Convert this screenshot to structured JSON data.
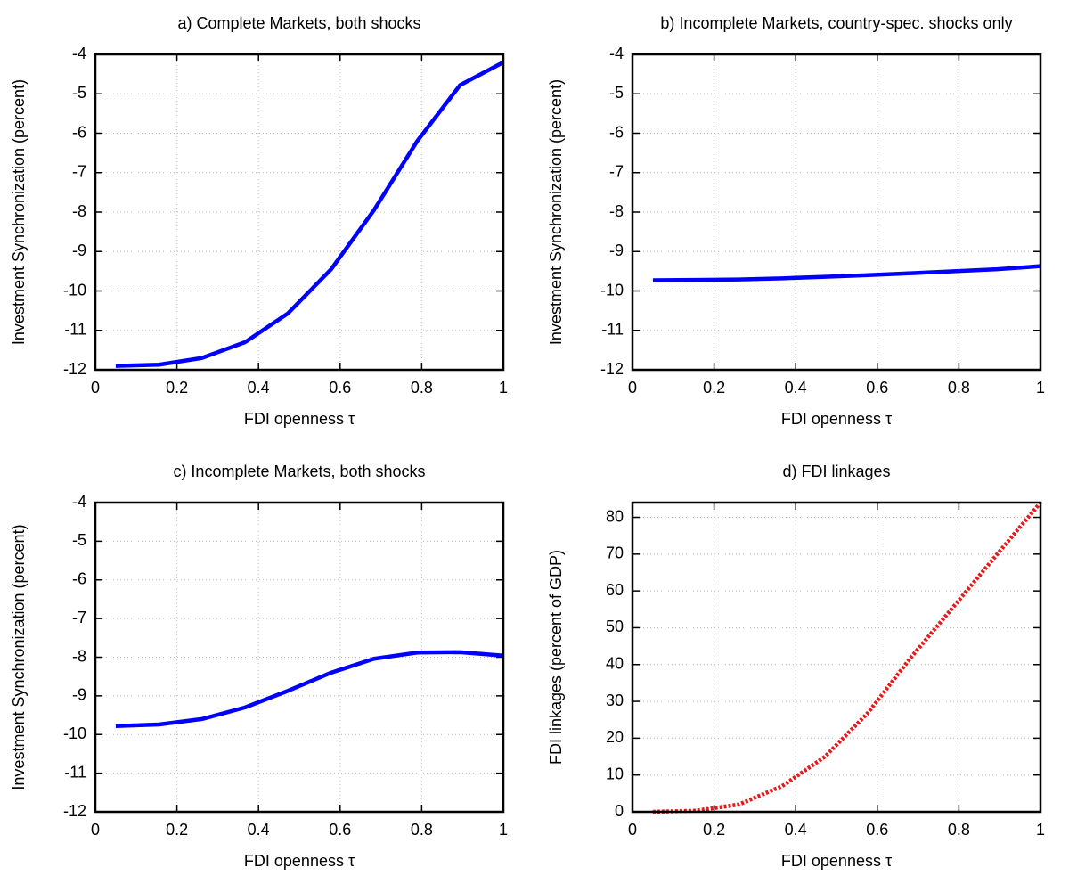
{
  "chart_data": [
    {
      "type": "line",
      "title": "a) Complete Markets, both shocks",
      "x_label": "FDI openness τ",
      "y_label": "Investment Synchronization (percent)",
      "x": [
        0.05,
        0.156,
        0.261,
        0.367,
        0.472,
        0.578,
        0.683,
        0.789,
        0.894,
        1
      ],
      "series": [
        {
          "color": "#0000ff",
          "values": [
            -11.9,
            -11.87,
            -11.7,
            -11.3,
            -10.57,
            -9.45,
            -7.95,
            -6.2,
            -4.78,
            -4.2
          ]
        }
      ],
      "xlim": [
        0,
        1
      ],
      "xticks": [
        0,
        0.2,
        0.4,
        0.6,
        0.8,
        1
      ],
      "ylim": [
        -12,
        -4
      ],
      "yticks": [
        -12,
        -11,
        -10,
        -9,
        -8,
        -7,
        -6,
        -5,
        -4
      ],
      "grid": true
    },
    {
      "type": "line",
      "title": "b) Incomplete Markets, country-spec. shocks only",
      "x_label": "FDI openness τ",
      "y_label": "Investment Synchronization (percent)",
      "x": [
        0.05,
        0.156,
        0.261,
        0.367,
        0.472,
        0.578,
        0.683,
        0.789,
        0.894,
        1
      ],
      "series": [
        {
          "color": "#0000ff",
          "values": [
            -9.73,
            -9.72,
            -9.71,
            -9.68,
            -9.64,
            -9.6,
            -9.55,
            -9.5,
            -9.45,
            -9.37
          ]
        }
      ],
      "xlim": [
        0,
        1
      ],
      "xticks": [
        0,
        0.2,
        0.4,
        0.6,
        0.8,
        1
      ],
      "ylim": [
        -12,
        -4
      ],
      "yticks": [
        -12,
        -11,
        -10,
        -9,
        -8,
        -7,
        -6,
        -5,
        -4
      ],
      "grid": true
    },
    {
      "type": "line",
      "title": "c) Incomplete Markets, both shocks",
      "x_label": "FDI openness τ",
      "y_label": "Investment Synchronization (percent)",
      "x": [
        0.05,
        0.156,
        0.261,
        0.367,
        0.472,
        0.578,
        0.683,
        0.789,
        0.894,
        1
      ],
      "series": [
        {
          "color": "#0000ff",
          "values": [
            -9.78,
            -9.74,
            -9.6,
            -9.3,
            -8.87,
            -8.4,
            -8.04,
            -7.88,
            -7.87,
            -7.96
          ]
        }
      ],
      "xlim": [
        0,
        1
      ],
      "xticks": [
        0,
        0.2,
        0.4,
        0.6,
        0.8,
        1
      ],
      "ylim": [
        -12,
        -4
      ],
      "yticks": [
        -12,
        -11,
        -10,
        -9,
        -8,
        -7,
        -6,
        -5,
        -4
      ],
      "grid": true
    },
    {
      "type": "line",
      "title": "d) FDI linkages",
      "x_label": "FDI openness τ",
      "y_label": "FDI linkages (percent of GDP)",
      "x": [
        0.05,
        0.156,
        0.261,
        0.367,
        0.472,
        0.578,
        0.683,
        0.789,
        0.894,
        1
      ],
      "series": [
        {
          "color": "#e31a1c",
          "dashed": true,
          "values": [
            0,
            0.3,
            2,
            7,
            15,
            27,
            42,
            56,
            70,
            84
          ]
        }
      ],
      "xlim": [
        0,
        1
      ],
      "xticks": [
        0,
        0.2,
        0.4,
        0.6,
        0.8,
        1
      ],
      "ylim": [
        0,
        84
      ],
      "yticks": [
        0,
        10,
        20,
        30,
        40,
        50,
        60,
        70,
        80
      ],
      "grid": true
    }
  ]
}
